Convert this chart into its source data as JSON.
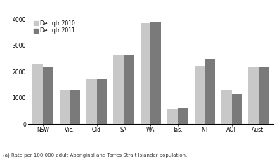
{
  "categories": [
    "NSW",
    "Vic.",
    "Qld",
    "SA",
    "WA",
    "Tas.",
    "NT",
    "ACT",
    "Aust."
  ],
  "dec_2010": [
    2280,
    1300,
    1700,
    2650,
    3850,
    570,
    2220,
    1300,
    2200
  ],
  "dec_2011": [
    2170,
    1300,
    1700,
    2650,
    3900,
    620,
    2480,
    1160,
    2200
  ],
  "color_2010": "#c8c8c8",
  "color_2011": "#7a7a7a",
  "legend_labels": [
    "Dec qtr 2010",
    "Dec qtr 2011"
  ],
  "ylim": [
    0,
    4000
  ],
  "yticks": [
    0,
    1000,
    2000,
    3000,
    4000
  ],
  "footnote": "(a) Rate per 100,000 adult Aboriginal and Torres Strait Islander population.",
  "bar_width": 0.38
}
